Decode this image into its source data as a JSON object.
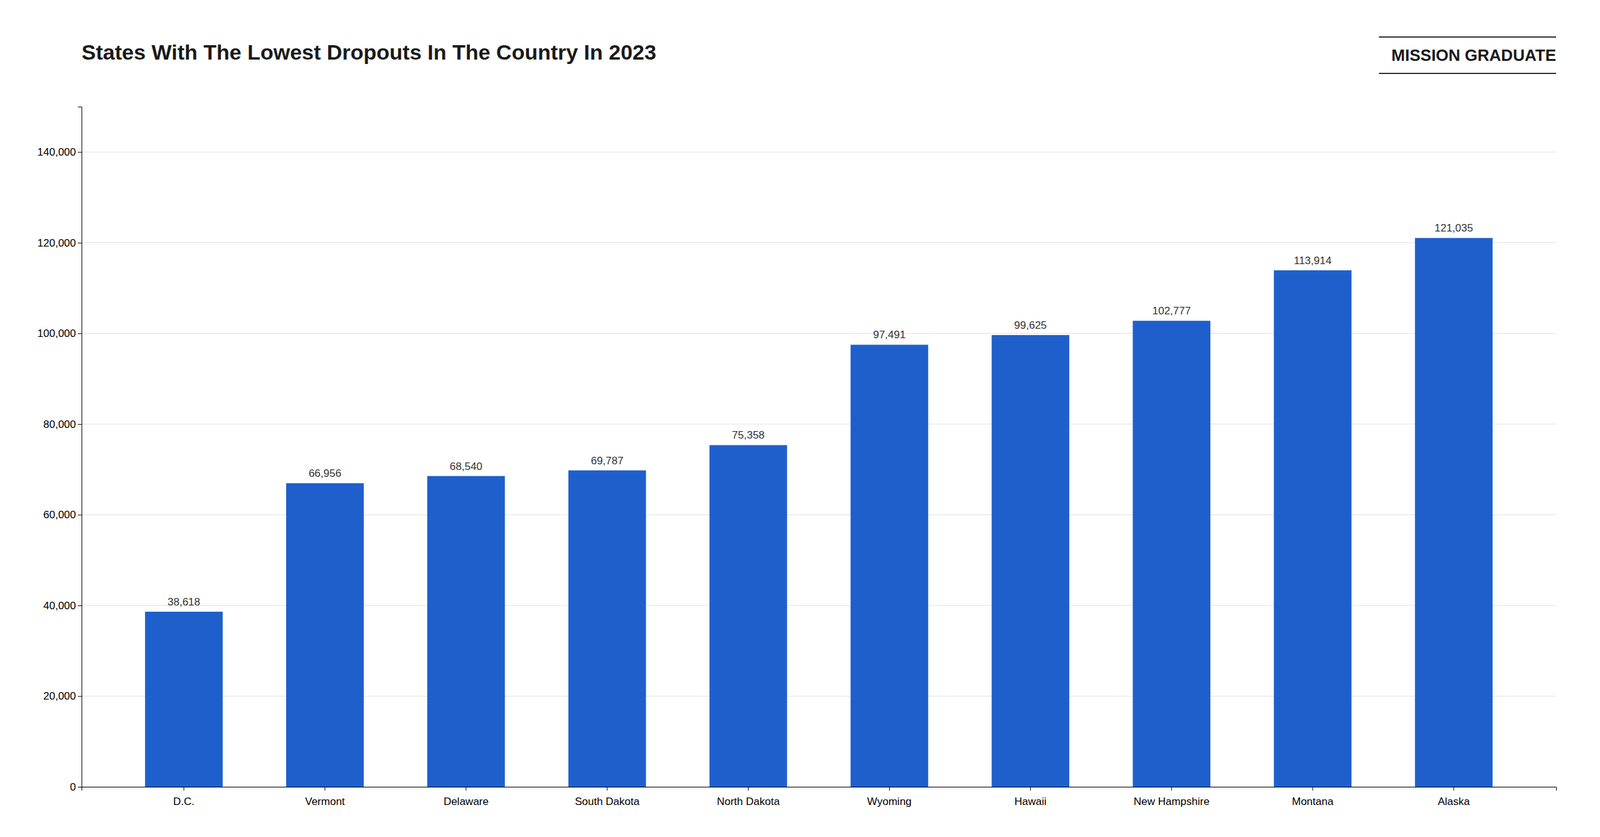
{
  "chart_data": {
    "type": "bar",
    "title": "States With The Lowest Dropouts In The Country In 2023",
    "annotations": [
      "MISSION GRADUATE"
    ],
    "categories": [
      "D.C.",
      "Vermont",
      "Delaware",
      "South Dakota",
      "North Dakota",
      "Wyoming",
      "Hawaii",
      "New Hampshire",
      "Montana",
      "Alaska"
    ],
    "values": [
      38618,
      66956,
      68540,
      69787,
      75358,
      97491,
      99625,
      102777,
      113914,
      121035
    ],
    "value_labels": [
      "38,618",
      "66,956",
      "68,540",
      "69,787",
      "75,358",
      "97,491",
      "99,625",
      "102,777",
      "113,914",
      "121,035"
    ],
    "color": "#1e5fcc",
    "data_labels": true,
    "ylim": [
      0,
      150000
    ],
    "yticks": [
      0,
      {
        "value": 20000,
        "label": "20,000"
      },
      {
        "value": 40000,
        "label": "40,000"
      },
      {
        "value": 60000,
        "label": "60,000"
      },
      {
        "value": 80000,
        "label": "80,000"
      },
      {
        "value": 100000,
        "label": "100,000"
      },
      {
        "value": 120000,
        "label": "120,000"
      },
      {
        "value": 140000,
        "label": "140,000"
      }
    ],
    "grid": true
  }
}
